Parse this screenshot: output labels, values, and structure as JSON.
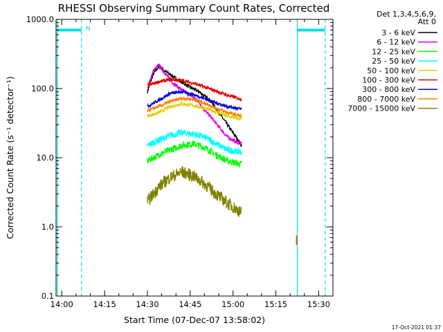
{
  "chart_data": {
    "type": "line",
    "title": "RHESSI Observing Summary Count Rates, Corrected",
    "xlabel": "Start Time (07-Dec-07 13:58:02)",
    "ylabel": "Corrected Count Rate (s⁻¹ detector⁻¹)",
    "y_scale": "log",
    "ylim": [
      0.1,
      1000
    ],
    "x_unit": "minutes of day",
    "xlim": [
      838,
      935
    ],
    "x_ticks": [
      {
        "value": 840,
        "label": "14:00"
      },
      {
        "value": 855,
        "label": "14:15"
      },
      {
        "value": 870,
        "label": "14:30"
      },
      {
        "value": 885,
        "label": "14:45"
      },
      {
        "value": 900,
        "label": "15:00"
      },
      {
        "value": 915,
        "label": "15:15"
      },
      {
        "value": 930,
        "label": "15:30"
      }
    ],
    "y_ticks": [
      {
        "value": 0.1,
        "label": "0.1"
      },
      {
        "value": 1,
        "label": "1.0"
      },
      {
        "value": 10,
        "label": "10.0"
      },
      {
        "value": 100,
        "label": "100.0"
      },
      {
        "value": 1000,
        "label": "1000.0"
      }
    ],
    "legend_header": [
      "Det 1,3,4,5,6,9,",
      "Att 0"
    ],
    "legend_position": "top-right, outside plot",
    "series": [
      {
        "name": "3 - 6 keV",
        "color": "#000000",
        "x": [
          870,
          872,
          874,
          876,
          880,
          884,
          888,
          892,
          895,
          898,
          901,
          903
        ],
        "y": [
          90,
          160,
          210,
          180,
          140,
          110,
          90,
          68,
          45,
          30,
          20,
          15
        ]
      },
      {
        "name": "6 - 12 keV",
        "color": "#e000e0",
        "x": [
          870,
          872,
          874,
          876,
          879,
          882,
          884,
          886,
          888,
          890,
          892,
          895,
          898,
          901,
          903
        ],
        "y": [
          100,
          180,
          220,
          170,
          120,
          95,
          85,
          75,
          65,
          48,
          40,
          28,
          20,
          17,
          16
        ]
      },
      {
        "name": "12 - 25 keV",
        "color": "#00ff00",
        "x": [
          870,
          874,
          878,
          882,
          886,
          890,
          894,
          898,
          903
        ],
        "y": [
          9,
          11,
          13,
          15,
          16,
          14,
          11,
          9,
          8
        ]
      },
      {
        "name": "25 - 50 keV",
        "color": "#00ffff",
        "x": [
          870,
          874,
          878,
          882,
          886,
          890,
          894,
          898,
          903
        ],
        "y": [
          15,
          18,
          21,
          23,
          22,
          20,
          16,
          13,
          12
        ]
      },
      {
        "name": "50 - 100 keV",
        "color": "#e0d000",
        "x": [
          870,
          874,
          878,
          882,
          886,
          890,
          894,
          898,
          903
        ],
        "y": [
          40,
          45,
          55,
          60,
          57,
          52,
          46,
          40,
          36
        ]
      },
      {
        "name": "100 - 300 keV",
        "color": "#e00000",
        "x": [
          870,
          874,
          878,
          882,
          886,
          890,
          894,
          898,
          903
        ],
        "y": [
          110,
          125,
          135,
          130,
          120,
          105,
          92,
          80,
          70
        ]
      },
      {
        "name": "300 - 800 keV",
        "color": "#0000e0",
        "x": [
          870,
          874,
          878,
          882,
          886,
          890,
          894,
          898,
          903
        ],
        "y": [
          55,
          68,
          85,
          90,
          82,
          72,
          62,
          55,
          50
        ]
      },
      {
        "name": "800 - 7000 keV",
        "color": "#ff8000",
        "x": [
          870,
          874,
          878,
          882,
          886,
          890,
          894,
          898,
          903
        ],
        "y": [
          48,
          55,
          65,
          72,
          70,
          62,
          52,
          45,
          40
        ]
      },
      {
        "name": "7000 - 15000 keV",
        "color": "#808000",
        "x": [
          870,
          874,
          878,
          882,
          886,
          890,
          894,
          898,
          903
        ],
        "y": [
          2.3,
          3.8,
          5.2,
          6.2,
          5.5,
          4.2,
          3.0,
          2.2,
          1.6
        ]
      }
    ],
    "markers": {
      "color": "#00e0e0",
      "solid_lines_x": [
        838.5,
        922.5
      ],
      "dashed_lines_x": [
        846.9,
        932.3
      ],
      "bars": [
        {
          "x0": 838.5,
          "x1": 846.9,
          "y": 700
        },
        {
          "x0": 922.5,
          "x1": 932.3,
          "y": 700
        }
      ],
      "flag_label": "N",
      "flag_x": 848.4
    },
    "extra_points": {
      "color": "#808000",
      "x": 922.3,
      "y": [
        0.55,
        0.75
      ]
    }
  },
  "timestamp": "17-Oct-2021 01:37"
}
